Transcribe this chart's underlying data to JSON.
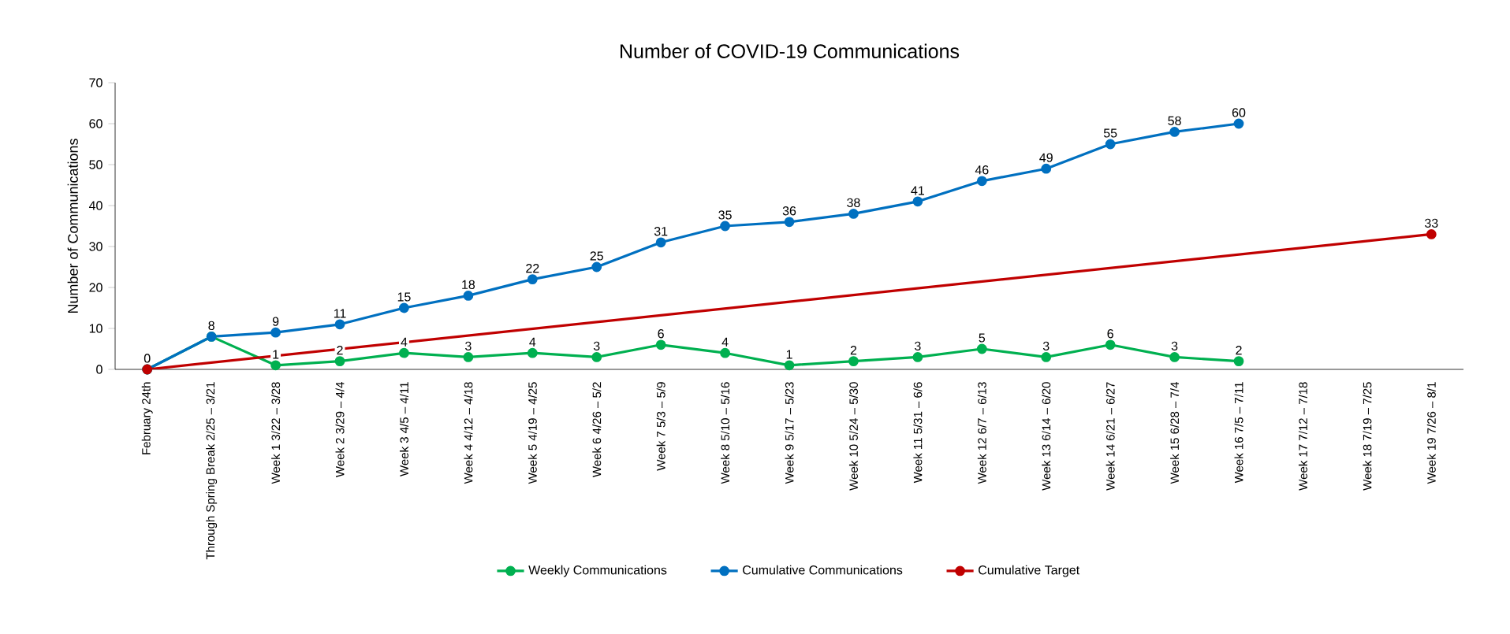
{
  "chart_data": {
    "type": "line",
    "title": "Number of COVID-19 Communications",
    "ylabel": "Number of Communications",
    "categories": [
      "February 24th",
      "Through Spring Break 2/25 – 3/21",
      "Week 1 3/22 – 3/28",
      "Week 2 3/29 – 4/4",
      "Week 3 4/5 – 4/11",
      "Week 4 4/12 – 4/18",
      "Week 5 4/19 – 4/25",
      "Week 6 4/26 – 5/2",
      "Week 7 5/3 – 5/9",
      "Week 8 5/10 – 5/16",
      "Week 9 5/17 – 5/23",
      "Week 10 5/24 – 5/30",
      "Week 11 5/31 – 6/6",
      "Week 12 6/7 – 6/13",
      "Week 13 6/14 – 6/20",
      "Week 14 6/21 – 6/27",
      "Week 15 6/28 – 7/4",
      "Week 16 7/5 – 7/11",
      "Week 17 7/12 – 7/18",
      "Week 18 7/19 – 7/25",
      "Week 19 7/26 – 8/1"
    ],
    "series": [
      {
        "name": "Weekly Communications",
        "color": "#00b050",
        "values": [
          0,
          8,
          1,
          2,
          4,
          3,
          4,
          3,
          6,
          4,
          1,
          2,
          3,
          5,
          3,
          6,
          3,
          2,
          null,
          null,
          null
        ],
        "value_labels": [
          null,
          null,
          "1",
          "2",
          "4",
          "3",
          "4",
          "3",
          "6",
          "4",
          "1",
          "2",
          "3",
          "5",
          "3",
          "6",
          "3",
          "2",
          null,
          null,
          null
        ]
      },
      {
        "name": "Cumulative Communications",
        "color": "#0070c0",
        "values": [
          0,
          8,
          9,
          11,
          15,
          18,
          22,
          25,
          31,
          35,
          36,
          38,
          41,
          46,
          49,
          55,
          58,
          60,
          null,
          null,
          null
        ],
        "value_labels": [
          "0",
          "8",
          "9",
          "11",
          "15",
          "18",
          "22",
          "25",
          "31",
          "35",
          "36",
          "38",
          "41",
          "46",
          "49",
          "55",
          "58",
          "60",
          null,
          null,
          null
        ]
      },
      {
        "name": "Cumulative Target",
        "color": "#c00000",
        "x": [
          "February 24th",
          "Week 19 7/26 – 8/1"
        ],
        "values": [
          0,
          33
        ],
        "value_labels": [
          null,
          "33"
        ]
      }
    ],
    "ylim": [
      0,
      70
    ],
    "yticks": [
      0,
      10,
      20,
      30,
      40,
      50,
      60,
      70
    ],
    "legend": "bottom",
    "marker": "circle",
    "line_style": "solid",
    "grid": false
  }
}
